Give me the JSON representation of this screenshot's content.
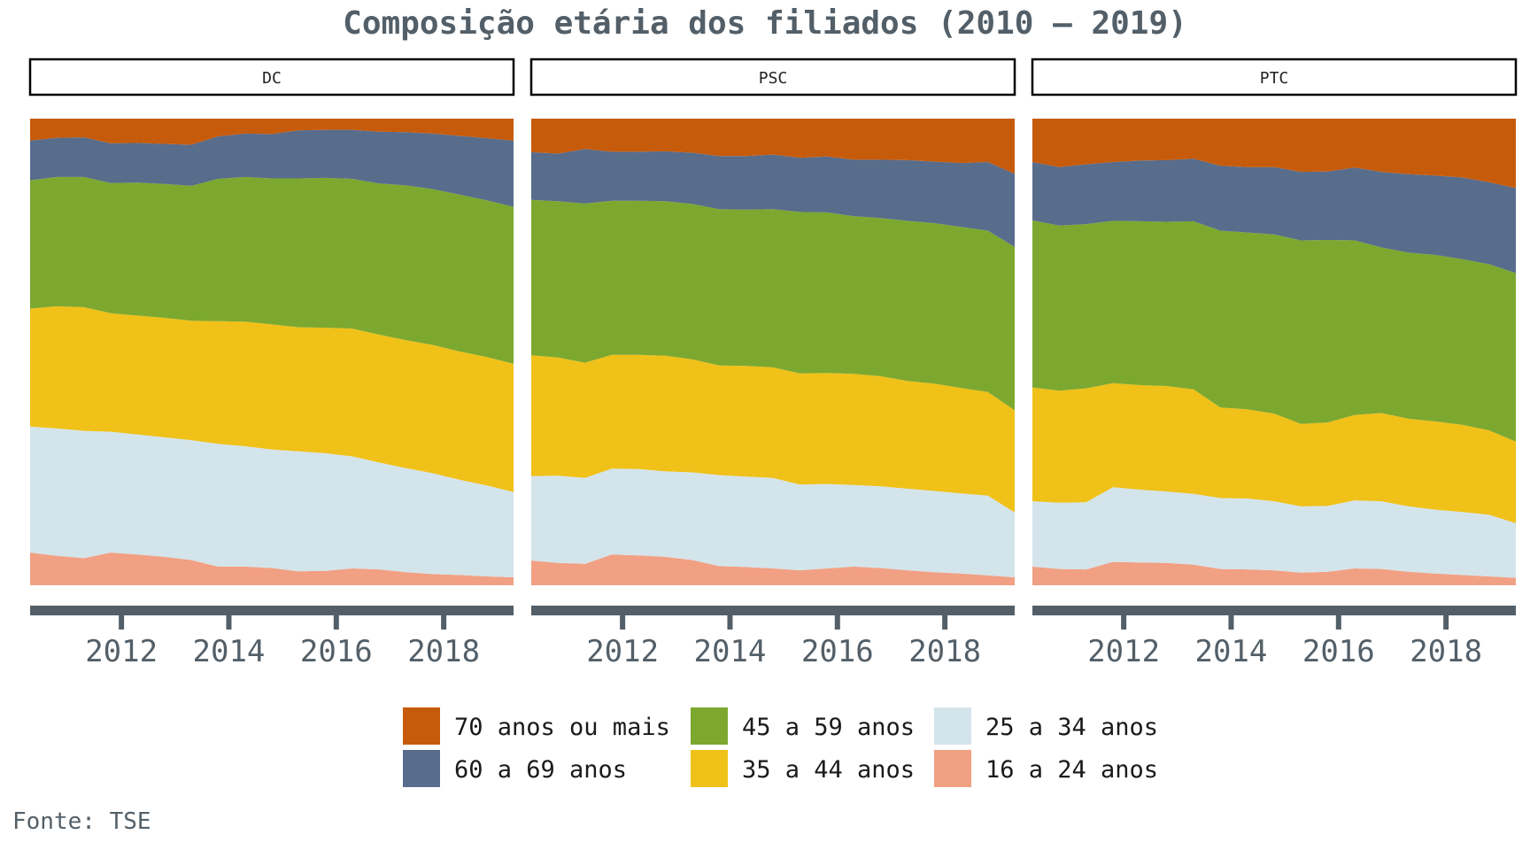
{
  "chart_data": {
    "type": "area",
    "stacking": "percent",
    "title": "Composição etária dos filiados (2010 – 2019)",
    "source": "Fonte: TSE",
    "xlabel": "",
    "ylabel": "",
    "xlim": [
      2010.3,
      2019.3
    ],
    "ylim": [
      0,
      1
    ],
    "x_ticks": [
      2012,
      2014,
      2016,
      2018
    ],
    "y_axis_labels_shown": false,
    "grid": false,
    "legend_position": "bottom",
    "x": [
      2010.3,
      2010.8,
      2011.3,
      2011.8,
      2012.3,
      2012.8,
      2013.3,
      2013.8,
      2014.3,
      2014.8,
      2015.3,
      2015.8,
      2016.3,
      2016.8,
      2017.3,
      2017.8,
      2018.3,
      2018.8,
      2019.3
    ],
    "colors": {
      "70 anos ou mais": "#c65b0b",
      "60 a 69 anos": "#586c8c",
      "45 a 59 anos": "#7ca82f",
      "35 a 44 anos": "#f0c119",
      "25 a 34 anos": "#d4e4eb",
      "16 a 24 anos": "#f1a083"
    },
    "legend": [
      "70 anos ou mais",
      "60 a 69 anos",
      "45 a 59 anos",
      "35 a 44 anos",
      "25 a 34 anos",
      "16 a 24 anos"
    ],
    "panels": [
      {
        "name": "DC",
        "series": [
          {
            "name": "16 a 24 anos",
            "values": [
              0.07,
              0.063,
              0.058,
              0.07,
              0.066,
              0.061,
              0.054,
              0.04,
              0.04,
              0.037,
              0.03,
              0.031,
              0.036,
              0.034,
              0.028,
              0.024,
              0.022,
              0.019,
              0.017
            ]
          },
          {
            "name": "25 a 34 anos",
            "values": [
              0.27,
              0.273,
              0.273,
              0.259,
              0.257,
              0.256,
              0.257,
              0.263,
              0.258,
              0.254,
              0.257,
              0.252,
              0.24,
              0.229,
              0.223,
              0.216,
              0.204,
              0.195,
              0.183
            ]
          },
          {
            "name": "35 a 44 anos",
            "values": [
              0.253,
              0.262,
              0.265,
              0.254,
              0.255,
              0.256,
              0.256,
              0.263,
              0.267,
              0.268,
              0.266,
              0.269,
              0.274,
              0.274,
              0.274,
              0.275,
              0.275,
              0.275,
              0.275
            ]
          },
          {
            "name": "45 a 59 anos",
            "values": [
              0.275,
              0.277,
              0.279,
              0.279,
              0.285,
              0.287,
              0.289,
              0.305,
              0.31,
              0.313,
              0.319,
              0.321,
              0.321,
              0.324,
              0.332,
              0.334,
              0.336,
              0.336,
              0.336
            ]
          },
          {
            "name": "60 a 69 anos",
            "values": [
              0.085,
              0.084,
              0.085,
              0.085,
              0.085,
              0.086,
              0.088,
              0.091,
              0.093,
              0.095,
              0.103,
              0.103,
              0.105,
              0.111,
              0.114,
              0.119,
              0.126,
              0.133,
              0.142
            ]
          },
          {
            "name": "70 anos ou mais",
            "values": [
              0.047,
              0.041,
              0.04,
              0.053,
              0.052,
              0.054,
              0.056,
              0.038,
              0.032,
              0.033,
              0.025,
              0.024,
              0.024,
              0.028,
              0.029,
              0.032,
              0.037,
              0.042,
              0.047
            ]
          }
        ]
      },
      {
        "name": "PSC",
        "series": [
          {
            "name": "16 a 24 anos",
            "values": [
              0.053,
              0.048,
              0.046,
              0.066,
              0.064,
              0.061,
              0.054,
              0.041,
              0.039,
              0.036,
              0.032,
              0.036,
              0.04,
              0.037,
              0.032,
              0.028,
              0.025,
              0.021,
              0.017
            ]
          },
          {
            "name": "25 a 34 anos",
            "values": [
              0.181,
              0.187,
              0.184,
              0.184,
              0.185,
              0.183,
              0.188,
              0.195,
              0.194,
              0.194,
              0.184,
              0.181,
              0.175,
              0.175,
              0.175,
              0.174,
              0.172,
              0.171,
              0.139
            ]
          },
          {
            "name": "35 a 44 anos",
            "values": [
              0.259,
              0.253,
              0.247,
              0.244,
              0.245,
              0.248,
              0.242,
              0.235,
              0.237,
              0.237,
              0.238,
              0.238,
              0.238,
              0.236,
              0.231,
              0.23,
              0.226,
              0.222,
              0.219
            ]
          },
          {
            "name": "45 a 59 anos",
            "values": [
              0.333,
              0.335,
              0.341,
              0.33,
              0.33,
              0.331,
              0.333,
              0.335,
              0.335,
              0.339,
              0.346,
              0.344,
              0.338,
              0.339,
              0.343,
              0.344,
              0.345,
              0.346,
              0.35
            ]
          },
          {
            "name": "60 a 69 anos",
            "values": [
              0.102,
              0.102,
              0.117,
              0.105,
              0.105,
              0.107,
              0.11,
              0.114,
              0.115,
              0.117,
              0.116,
              0.12,
              0.121,
              0.125,
              0.13,
              0.132,
              0.137,
              0.147,
              0.157
            ]
          },
          {
            "name": "70 anos ou mais",
            "values": [
              0.072,
              0.075,
              0.065,
              0.071,
              0.071,
              0.07,
              0.073,
              0.08,
              0.08,
              0.077,
              0.084,
              0.081,
              0.088,
              0.088,
              0.089,
              0.092,
              0.095,
              0.093,
              0.118
            ]
          }
        ]
      },
      {
        "name": "PTC",
        "series": [
          {
            "name": "16 a 24 anos",
            "values": [
              0.04,
              0.035,
              0.034,
              0.05,
              0.049,
              0.048,
              0.044,
              0.035,
              0.034,
              0.032,
              0.027,
              0.029,
              0.036,
              0.035,
              0.029,
              0.025,
              0.022,
              0.019,
              0.016
            ]
          },
          {
            "name": "25 a 34 anos",
            "values": [
              0.14,
              0.142,
              0.144,
              0.16,
              0.156,
              0.153,
              0.152,
              0.152,
              0.152,
              0.148,
              0.142,
              0.141,
              0.146,
              0.145,
              0.14,
              0.137,
              0.135,
              0.132,
              0.117
            ]
          },
          {
            "name": "35 a 44 anos",
            "values": [
              0.244,
              0.24,
              0.244,
              0.223,
              0.224,
              0.226,
              0.224,
              0.194,
              0.191,
              0.188,
              0.177,
              0.179,
              0.183,
              0.189,
              0.188,
              0.189,
              0.187,
              0.181,
              0.175
            ]
          },
          {
            "name": "45 a 59 anos",
            "values": [
              0.358,
              0.354,
              0.352,
              0.348,
              0.351,
              0.352,
              0.36,
              0.379,
              0.379,
              0.384,
              0.393,
              0.391,
              0.374,
              0.355,
              0.356,
              0.357,
              0.355,
              0.356,
              0.361
            ]
          },
          {
            "name": "60 a 69 anos",
            "values": [
              0.125,
              0.125,
              0.128,
              0.126,
              0.13,
              0.132,
              0.134,
              0.139,
              0.14,
              0.144,
              0.147,
              0.147,
              0.156,
              0.162,
              0.168,
              0.17,
              0.175,
              0.176,
              0.182
            ]
          },
          {
            "name": "70 anos ou mais",
            "values": [
              0.093,
              0.104,
              0.098,
              0.093,
              0.09,
              0.089,
              0.086,
              0.101,
              0.104,
              0.104,
              0.114,
              0.113,
              0.105,
              0.114,
              0.119,
              0.122,
              0.126,
              0.136,
              0.149
            ]
          }
        ]
      }
    ]
  }
}
